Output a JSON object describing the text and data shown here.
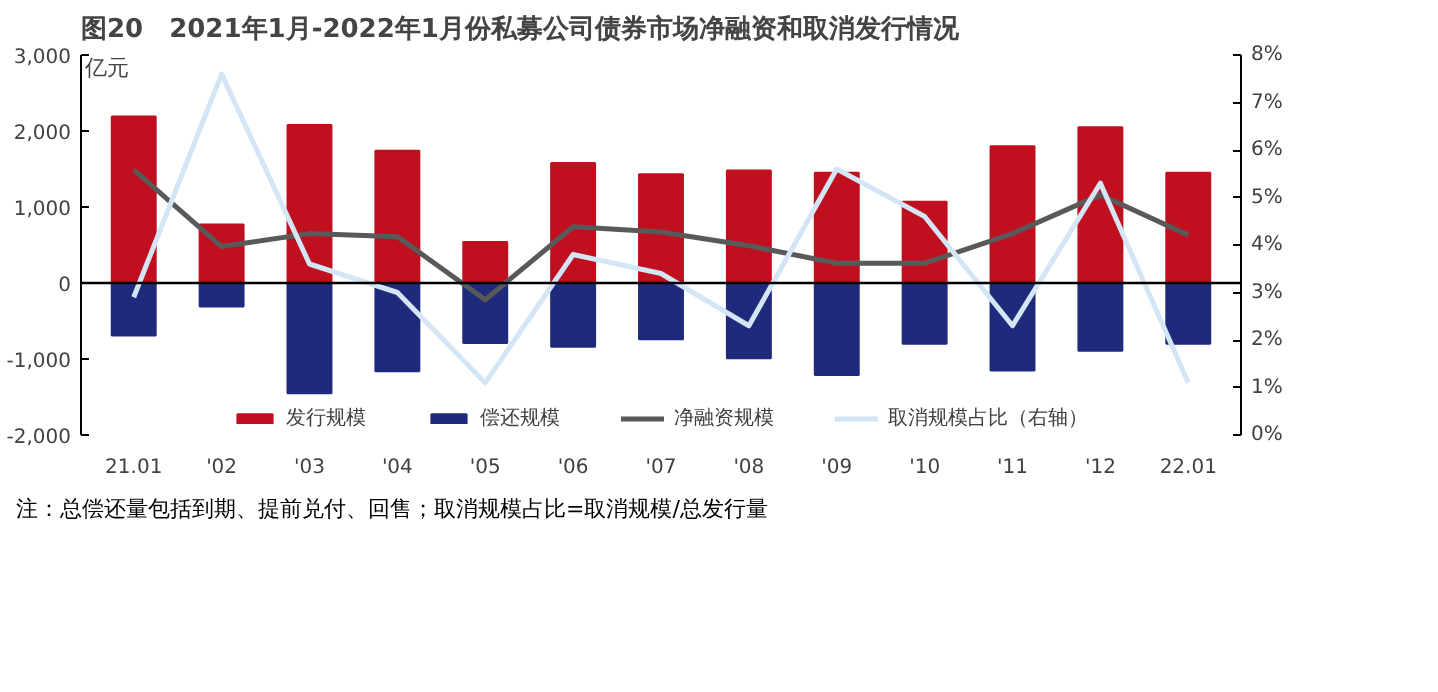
{
  "chart_data": {
    "type": "bar",
    "title": "图20　2021年1月-2022年1月份私募公司债券市场净融资和取消发行情况",
    "ylabel": "亿元",
    "categories": [
      "21.01",
      "'02",
      "'03",
      "'04",
      "'05",
      "'06",
      "'07",
      "'08",
      "'09",
      "'10",
      "'11",
      "'12",
      "22.01"
    ],
    "series": [
      {
        "name": "发行规模",
        "color": "#c00f1f",
        "values": [
          2190,
          770,
          2080,
          1740,
          540,
          1580,
          1430,
          1480,
          1450,
          1070,
          1800,
          2050,
          1450
        ]
      },
      {
        "name": "偿还规模",
        "color": "#1f2a7c",
        "values": [
          -690,
          -310,
          -1450,
          -1160,
          -790,
          -840,
          -740,
          -990,
          -1210,
          -800,
          -1150,
          -890,
          -800
        ]
      },
      {
        "name": "净融资规模",
        "type": "line",
        "color": "#595959",
        "values": [
          1490,
          480,
          650,
          610,
          -220,
          740,
          670,
          490,
          260,
          260,
          650,
          1160,
          630
        ]
      },
      {
        "name": "取消规模占比（右轴）",
        "type": "line",
        "axis": "y2",
        "color": "#d4e5f5",
        "values": [
          2.9,
          7.6,
          3.6,
          3.0,
          1.1,
          3.8,
          3.4,
          2.3,
          5.6,
          4.6,
          2.3,
          5.3,
          1.1
        ]
      }
    ],
    "ylim": [
      -2000,
      3000
    ],
    "yticks": [
      {
        "value": -2000,
        "label": "-2,000"
      },
      {
        "value": -1000,
        "label": "-1,000"
      },
      0,
      {
        "value": 1000,
        "label": "1,000"
      },
      {
        "value": 2000,
        "label": "2,000"
      },
      {
        "value": 3000,
        "label": "3,000"
      }
    ],
    "y2lim": [
      0,
      8
    ],
    "y2ticks": [
      {
        "value": 0,
        "label": "0%"
      },
      {
        "value": 1,
        "label": "1%"
      },
      {
        "value": 2,
        "label": "2%"
      },
      {
        "value": 3,
        "label": "3%"
      },
      {
        "value": 4,
        "label": "4%"
      },
      {
        "value": 5,
        "label": "5%"
      },
      {
        "value": 6,
        "label": "6%"
      },
      {
        "value": 7,
        "label": "7%"
      },
      {
        "value": 8,
        "label": "8%"
      }
    ],
    "ref_lines": [
      {
        "axis": "y",
        "value": 0,
        "color": "#000000"
      }
    ],
    "legend": "bottom",
    "stacked": true,
    "grid": false,
    "annotations": [
      "注：总偿还量包括到期、提前兑付、回售；取消规模占比=取消规模/总发行量"
    ]
  }
}
